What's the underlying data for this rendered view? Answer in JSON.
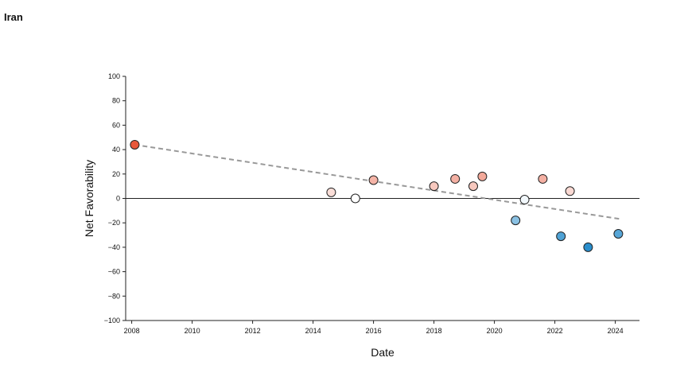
{
  "page": {
    "title": "Iran"
  },
  "chart_data": {
    "type": "scatter",
    "title": "Iran",
    "xlabel": "Date",
    "ylabel": "Net Favorability",
    "xlim": [
      2007.8,
      2024.8
    ],
    "ylim": [
      -100,
      100
    ],
    "x_ticks": [
      2008,
      2010,
      2012,
      2014,
      2016,
      2018,
      2020,
      2022,
      2024
    ],
    "y_ticks": [
      100,
      80,
      60,
      40,
      20,
      0,
      -20,
      -40,
      -60,
      -80,
      -100
    ],
    "y_tick_labels": [
      "100",
      "80",
      "60",
      "40",
      "20",
      "0",
      "−20",
      "−40",
      "−60",
      "−80",
      "−100"
    ],
    "grid": false,
    "zero_line": true,
    "trendline": {
      "style": "dashed",
      "color": "#999999",
      "x": [
        2008.1,
        2024.2
      ],
      "y": [
        44,
        -17
      ]
    },
    "color_scale": {
      "positive": "#e8573a",
      "neutral": "#ffffff",
      "negative": "#1a86c8"
    },
    "points": [
      {
        "x": 2008.1,
        "y": 44
      },
      {
        "x": 2014.6,
        "y": 5
      },
      {
        "x": 2015.4,
        "y": 0
      },
      {
        "x": 2016.0,
        "y": 15
      },
      {
        "x": 2018.0,
        "y": 10
      },
      {
        "x": 2018.7,
        "y": 16
      },
      {
        "x": 2019.3,
        "y": 10
      },
      {
        "x": 2019.6,
        "y": 18
      },
      {
        "x": 2020.7,
        "y": -18
      },
      {
        "x": 2021.0,
        "y": -1
      },
      {
        "x": 2021.6,
        "y": 16
      },
      {
        "x": 2022.2,
        "y": -31
      },
      {
        "x": 2022.5,
        "y": 6
      },
      {
        "x": 2023.1,
        "y": -40
      },
      {
        "x": 2024.1,
        "y": -29
      }
    ]
  }
}
